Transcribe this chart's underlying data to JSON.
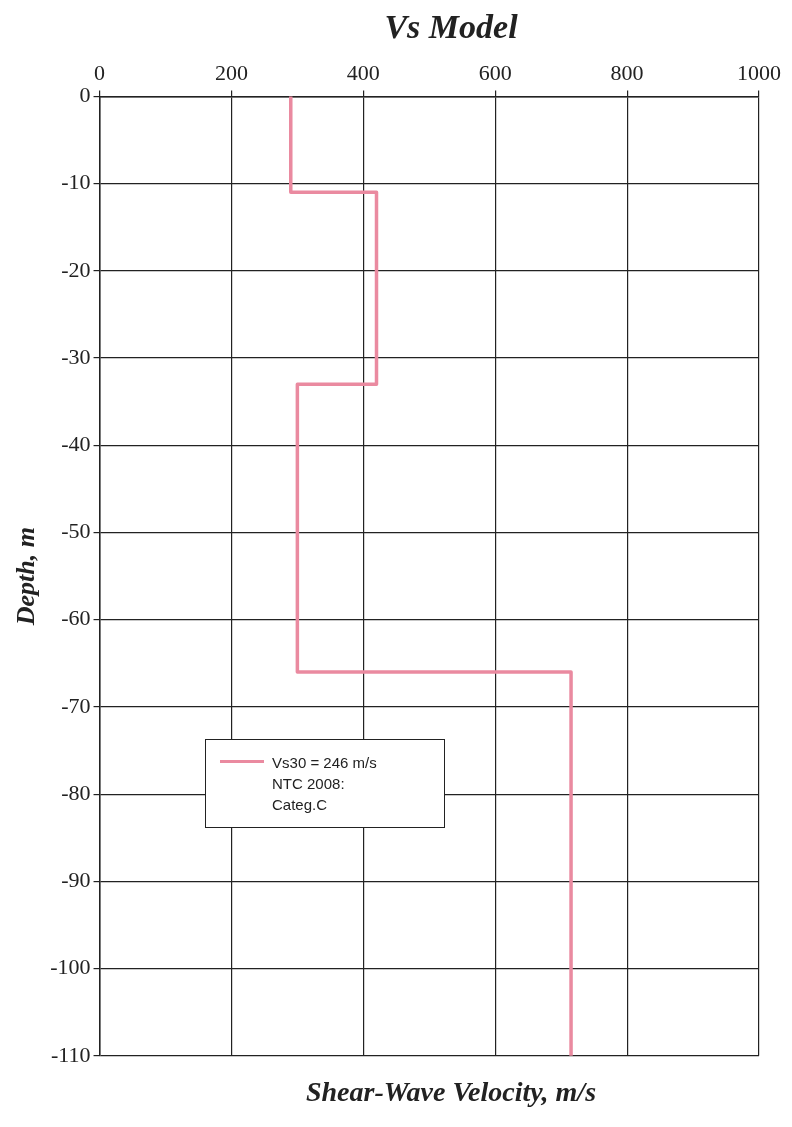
{
  "chart_data": {
    "type": "line",
    "title": "Vs Model",
    "xlabel": "Shear-Wave Velocity, m/s",
    "ylabel": "Depth, m",
    "series": [
      {
        "name": "Vs30 = 246 m/s NTC 2008: Categ.C",
        "color": "#ea8aa0",
        "x": [
          290,
          290,
          420,
          420,
          300,
          300,
          715,
          715
        ],
        "values": [
          0,
          -11,
          -11,
          -33,
          -33,
          -66,
          -66,
          -110
        ]
      }
    ],
    "xlim": [
      0,
      1000
    ],
    "xticks": [
      0,
      200,
      400,
      600,
      800,
      1000
    ],
    "ylim": [
      -110,
      0
    ],
    "yticks": [
      0,
      -10,
      -20,
      -30,
      -40,
      -50,
      -60,
      -70,
      -80,
      -90,
      -100,
      -110
    ],
    "grid": true,
    "legend": "bottom left",
    "marker": "none",
    "line_style": "solid"
  }
}
